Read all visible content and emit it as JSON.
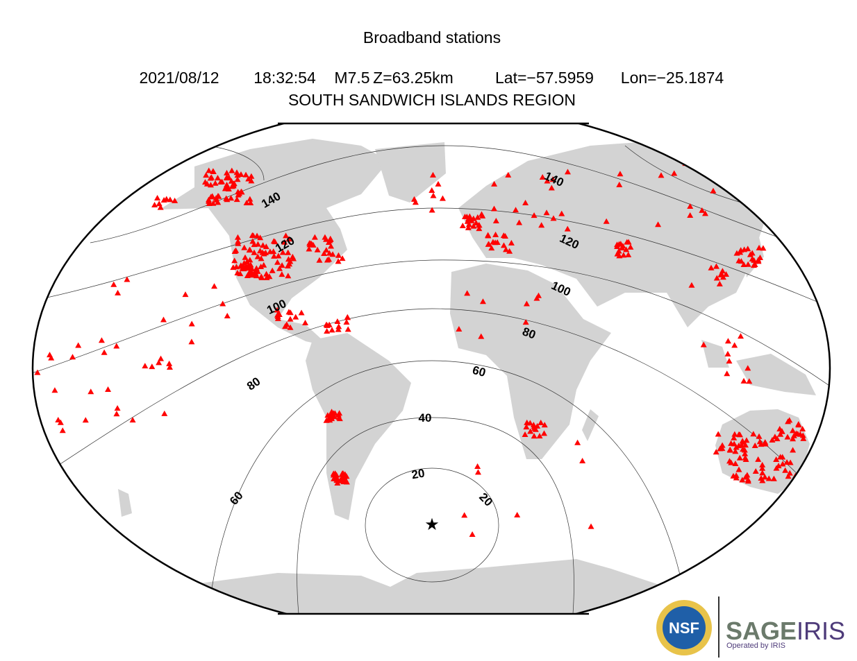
{
  "title": "Broadband stations",
  "event": {
    "date": "2021/08/12",
    "time": "18:32:54",
    "magnitude": "M7.5",
    "depth": "Z=63.25km",
    "lat": "Lat=−57.5959",
    "lon": "Lon=−25.1874"
  },
  "region": "SOUTH SANDWICH ISLANDS REGION",
  "contour_labels": [
    "140",
    "140",
    "120",
    "120",
    "100",
    "100",
    "80",
    "80",
    "60",
    "60",
    "40",
    "20",
    "20"
  ],
  "logo": {
    "nsf": "NSF",
    "sage": "SAGE",
    "iris": "IRIS",
    "operated": "Operated by IRIS"
  }
}
